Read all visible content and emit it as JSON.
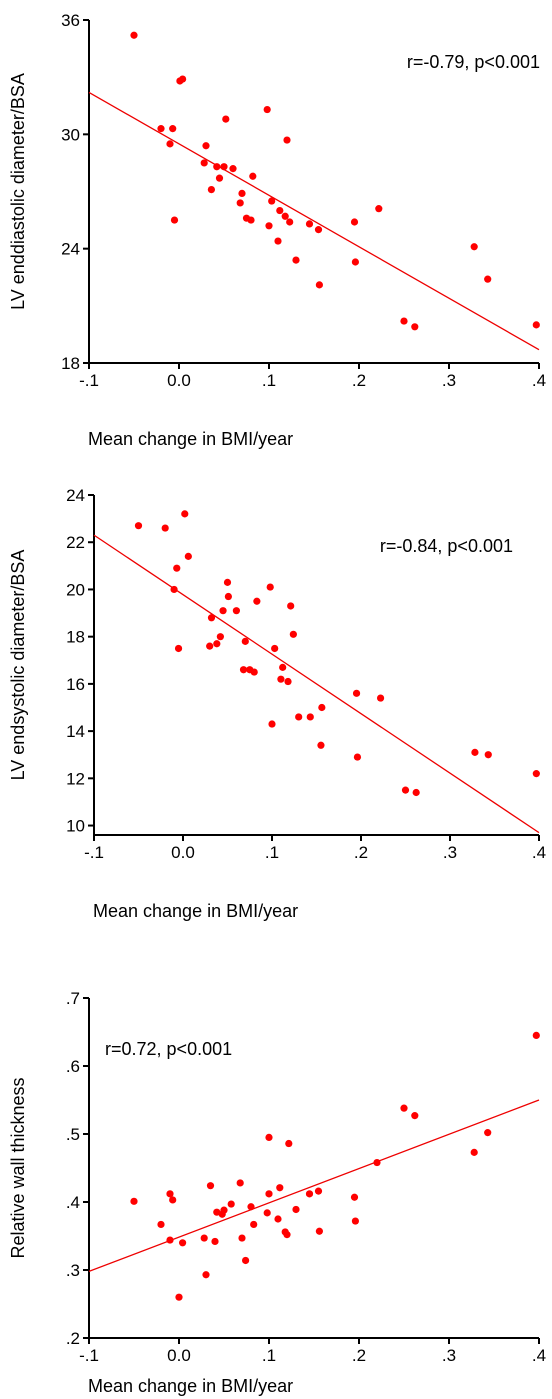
{
  "chart_data": [
    {
      "type": "scatter",
      "title": "",
      "xlabel": "Mean change in BMI/year",
      "ylabel": "LV enddiastolic diameter/BSA",
      "annotation": "r=-0.79, p<0.001",
      "xlim": [
        -0.1,
        0.4
      ],
      "ylim": [
        18,
        36
      ],
      "xticks": [
        -0.1,
        0.0,
        0.1,
        0.2,
        0.3,
        0.4
      ],
      "xtick_labels": [
        "-.1",
        "0.0",
        ".1",
        ".2",
        ".3",
        ".4"
      ],
      "yticks": [
        18,
        24,
        30,
        36
      ],
      "ytick_labels": [
        "18",
        "24",
        "30",
        "36"
      ],
      "regression_line": {
        "x": [
          -0.1,
          0.4
        ],
        "y": [
          32.2,
          18.7
        ]
      },
      "points": [
        {
          "x": -0.05,
          "y": 35.2
        },
        {
          "x": -0.02,
          "y": 30.3
        },
        {
          "x": -0.01,
          "y": 29.5
        },
        {
          "x": -0.007,
          "y": 30.3
        },
        {
          "x": -0.005,
          "y": 25.5
        },
        {
          "x": 0.001,
          "y": 32.8
        },
        {
          "x": 0.004,
          "y": 32.9
        },
        {
          "x": 0.028,
          "y": 28.5
        },
        {
          "x": 0.03,
          "y": 29.4
        },
        {
          "x": 0.036,
          "y": 27.1
        },
        {
          "x": 0.042,
          "y": 28.3
        },
        {
          "x": 0.045,
          "y": 27.7
        },
        {
          "x": 0.05,
          "y": 28.3
        },
        {
          "x": 0.052,
          "y": 30.8
        },
        {
          "x": 0.06,
          "y": 28.2
        },
        {
          "x": 0.068,
          "y": 26.4
        },
        {
          "x": 0.07,
          "y": 26.9
        },
        {
          "x": 0.075,
          "y": 25.6
        },
        {
          "x": 0.08,
          "y": 25.5
        },
        {
          "x": 0.082,
          "y": 27.8
        },
        {
          "x": 0.098,
          "y": 31.3
        },
        {
          "x": 0.1,
          "y": 25.2
        },
        {
          "x": 0.103,
          "y": 26.5
        },
        {
          "x": 0.11,
          "y": 24.4
        },
        {
          "x": 0.112,
          "y": 26.0
        },
        {
          "x": 0.118,
          "y": 25.7
        },
        {
          "x": 0.12,
          "y": 29.7
        },
        {
          "x": 0.123,
          "y": 25.4
        },
        {
          "x": 0.13,
          "y": 23.4
        },
        {
          "x": 0.145,
          "y": 25.3
        },
        {
          "x": 0.155,
          "y": 25.0
        },
        {
          "x": 0.156,
          "y": 22.1
        },
        {
          "x": 0.195,
          "y": 25.4
        },
        {
          "x": 0.196,
          "y": 23.3
        },
        {
          "x": 0.222,
          "y": 26.1
        },
        {
          "x": 0.25,
          "y": 20.2
        },
        {
          "x": 0.262,
          "y": 19.9
        },
        {
          "x": 0.328,
          "y": 24.1
        },
        {
          "x": 0.343,
          "y": 22.4
        },
        {
          "x": 0.397,
          "y": 20.0
        }
      ]
    },
    {
      "type": "scatter",
      "title": "",
      "xlabel": "Mean change in BMI/year",
      "ylabel": "LV endsystolic diameter/BSA",
      "annotation": "r=-0.84, p<0.001",
      "xlim": [
        -0.1,
        0.4
      ],
      "ylim": [
        9.6,
        24
      ],
      "xticks": [
        -0.1,
        0.0,
        0.1,
        0.2,
        0.3,
        0.4
      ],
      "xtick_labels": [
        "-.1",
        "0.0",
        ".1",
        ".2",
        ".3",
        ".4"
      ],
      "yticks": [
        10,
        12,
        14,
        16,
        18,
        20,
        22,
        24
      ],
      "ytick_labels": [
        "10",
        "12",
        "14",
        "16",
        "18",
        "20",
        "22",
        "24"
      ],
      "regression_line": {
        "x": [
          -0.1,
          0.4
        ],
        "y": [
          22.3,
          9.7
        ]
      },
      "points": [
        {
          "x": -0.05,
          "y": 22.7
        },
        {
          "x": -0.02,
          "y": 22.6
        },
        {
          "x": -0.01,
          "y": 20.0
        },
        {
          "x": -0.007,
          "y": 20.9
        },
        {
          "x": -0.005,
          "y": 17.5
        },
        {
          "x": 0.002,
          "y": 23.2
        },
        {
          "x": 0.006,
          "y": 21.4
        },
        {
          "x": 0.03,
          "y": 17.6
        },
        {
          "x": 0.032,
          "y": 18.8
        },
        {
          "x": 0.038,
          "y": 17.7
        },
        {
          "x": 0.042,
          "y": 18.0
        },
        {
          "x": 0.045,
          "y": 19.1
        },
        {
          "x": 0.05,
          "y": 20.3
        },
        {
          "x": 0.051,
          "y": 19.7
        },
        {
          "x": 0.06,
          "y": 19.1
        },
        {
          "x": 0.068,
          "y": 16.6
        },
        {
          "x": 0.07,
          "y": 17.8
        },
        {
          "x": 0.075,
          "y": 16.6
        },
        {
          "x": 0.08,
          "y": 16.5
        },
        {
          "x": 0.083,
          "y": 19.5
        },
        {
          "x": 0.098,
          "y": 20.1
        },
        {
          "x": 0.1,
          "y": 14.3
        },
        {
          "x": 0.103,
          "y": 17.5
        },
        {
          "x": 0.11,
          "y": 16.2
        },
        {
          "x": 0.112,
          "y": 16.7
        },
        {
          "x": 0.118,
          "y": 16.1
        },
        {
          "x": 0.121,
          "y": 19.3
        },
        {
          "x": 0.124,
          "y": 18.1
        },
        {
          "x": 0.13,
          "y": 14.6
        },
        {
          "x": 0.143,
          "y": 14.6
        },
        {
          "x": 0.155,
          "y": 13.4
        },
        {
          "x": 0.156,
          "y": 15.0
        },
        {
          "x": 0.195,
          "y": 15.6
        },
        {
          "x": 0.196,
          "y": 12.9
        },
        {
          "x": 0.222,
          "y": 15.4
        },
        {
          "x": 0.25,
          "y": 11.5
        },
        {
          "x": 0.262,
          "y": 11.4
        },
        {
          "x": 0.328,
          "y": 13.1
        },
        {
          "x": 0.343,
          "y": 13.0
        },
        {
          "x": 0.397,
          "y": 12.2
        }
      ]
    },
    {
      "type": "scatter",
      "title": "",
      "xlabel": "Mean change in BMI/year",
      "ylabel": "Relative wall thickness",
      "annotation": "r=0.72, p<0.001",
      "xlim": [
        -0.1,
        0.4
      ],
      "ylim": [
        0.2,
        0.7
      ],
      "xticks": [
        -0.1,
        0.0,
        0.1,
        0.2,
        0.3,
        0.4
      ],
      "xtick_labels": [
        "-.1",
        "0.0",
        ".1",
        ".2",
        ".3",
        ".4"
      ],
      "yticks": [
        0.2,
        0.3,
        0.4,
        0.5,
        0.6,
        0.7
      ],
      "ytick_labels": [
        ".2",
        ".3",
        ".4",
        ".5",
        ".6",
        ".7"
      ],
      "regression_line": {
        "x": [
          -0.1,
          0.4
        ],
        "y": [
          0.298,
          0.55
        ]
      },
      "points": [
        {
          "x": -0.05,
          "y": 0.401
        },
        {
          "x": -0.02,
          "y": 0.367
        },
        {
          "x": -0.01,
          "y": 0.412
        },
        {
          "x": -0.007,
          "y": 0.403
        },
        {
          "x": -0.01,
          "y": 0.344
        },
        {
          "x": 0.0,
          "y": 0.26
        },
        {
          "x": 0.004,
          "y": 0.34
        },
        {
          "x": 0.028,
          "y": 0.347
        },
        {
          "x": 0.03,
          "y": 0.293
        },
        {
          "x": 0.035,
          "y": 0.424
        },
        {
          "x": 0.04,
          "y": 0.342
        },
        {
          "x": 0.042,
          "y": 0.385
        },
        {
          "x": 0.048,
          "y": 0.382
        },
        {
          "x": 0.05,
          "y": 0.388
        },
        {
          "x": 0.058,
          "y": 0.397
        },
        {
          "x": 0.068,
          "y": 0.428
        },
        {
          "x": 0.07,
          "y": 0.347
        },
        {
          "x": 0.074,
          "y": 0.314
        },
        {
          "x": 0.08,
          "y": 0.393
        },
        {
          "x": 0.083,
          "y": 0.367
        },
        {
          "x": 0.098,
          "y": 0.384
        },
        {
          "x": 0.1,
          "y": 0.495
        },
        {
          "x": 0.1,
          "y": 0.412
        },
        {
          "x": 0.11,
          "y": 0.375
        },
        {
          "x": 0.112,
          "y": 0.421
        },
        {
          "x": 0.118,
          "y": 0.356
        },
        {
          "x": 0.12,
          "y": 0.352
        },
        {
          "x": 0.122,
          "y": 0.486
        },
        {
          "x": 0.13,
          "y": 0.389
        },
        {
          "x": 0.145,
          "y": 0.412
        },
        {
          "x": 0.155,
          "y": 0.416
        },
        {
          "x": 0.156,
          "y": 0.357
        },
        {
          "x": 0.195,
          "y": 0.407
        },
        {
          "x": 0.196,
          "y": 0.372
        },
        {
          "x": 0.22,
          "y": 0.458
        },
        {
          "x": 0.25,
          "y": 0.538
        },
        {
          "x": 0.262,
          "y": 0.527
        },
        {
          "x": 0.328,
          "y": 0.473
        },
        {
          "x": 0.343,
          "y": 0.502
        },
        {
          "x": 0.397,
          "y": 0.645
        }
      ]
    }
  ],
  "colors": {
    "points": "#ff0000",
    "line": "#ee0000",
    "axis": "#000000"
  }
}
